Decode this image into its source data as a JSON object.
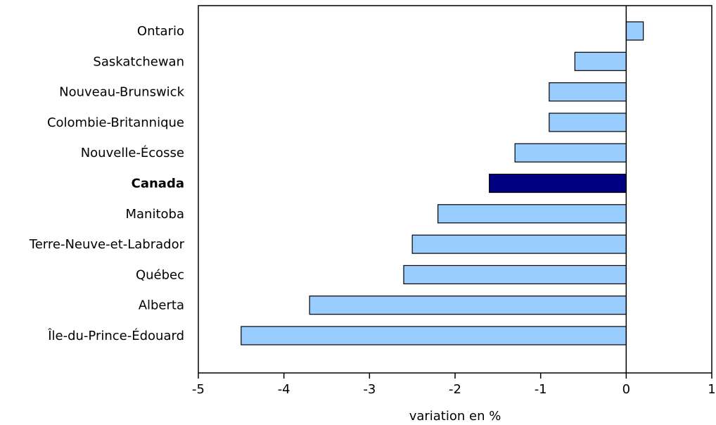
{
  "chart_data": {
    "type": "bar",
    "orientation": "horizontal",
    "categories": [
      "Ontario",
      "Saskatchewan",
      "Nouveau-Brunswick",
      "Colombie-Britannique",
      "Nouvelle-Écosse",
      "Canada",
      "Manitoba",
      "Terre-Neuve-et-Labrador",
      "Québec",
      "Alberta",
      "Île-du-Prince-Édouard"
    ],
    "values": [
      0.2,
      -0.6,
      -0.9,
      -0.9,
      -1.3,
      -1.6,
      -2.2,
      -2.5,
      -2.6,
      -3.7,
      -4.5
    ],
    "highlight": "Canada",
    "xlim": [
      -5,
      1
    ],
    "xticks": [
      "-5",
      "-4",
      "-3",
      "-2",
      "-1",
      "0",
      "1"
    ],
    "xlabel": "variation en %",
    "ylabel": "",
    "title": "",
    "grid": false,
    "colors": {
      "bar": "#99CCFF",
      "highlight": "#000080",
      "stroke": "#000000"
    }
  }
}
